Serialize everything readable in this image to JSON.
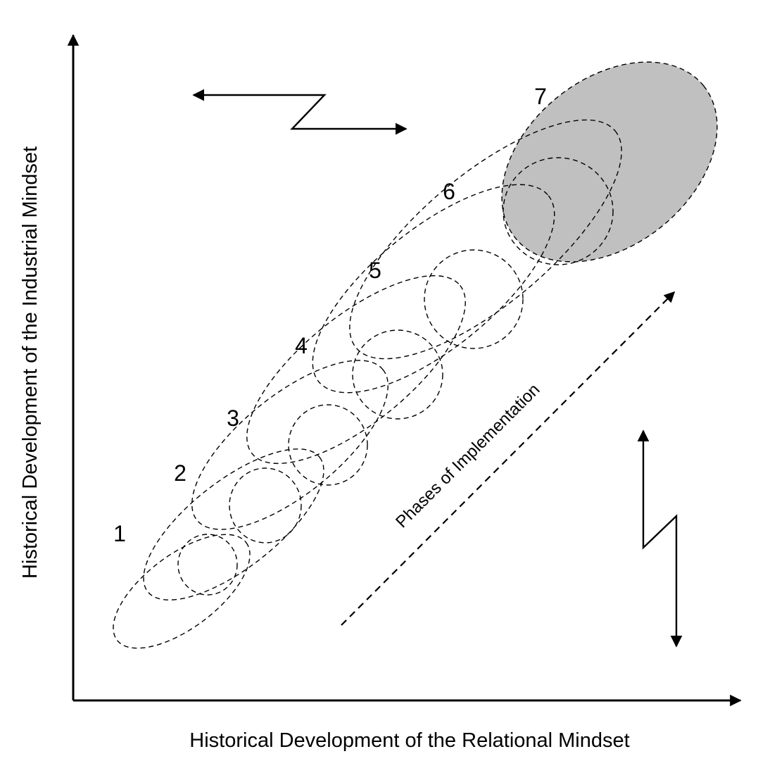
{
  "axes": {
    "x_title": "Historical Development of the Relational Mindset",
    "y_title": "Historical Development of the Industrial Mindset"
  },
  "phases": {
    "labels": [
      "1",
      "2",
      "3",
      "4",
      "5",
      "6",
      "7"
    ],
    "highlighted_phase": "7",
    "highlight_color": "#c0c0c0"
  },
  "annotation": {
    "direction_label": "Phases of Implementation"
  },
  "colors": {
    "line": "#000000",
    "background": "#ffffff"
  }
}
